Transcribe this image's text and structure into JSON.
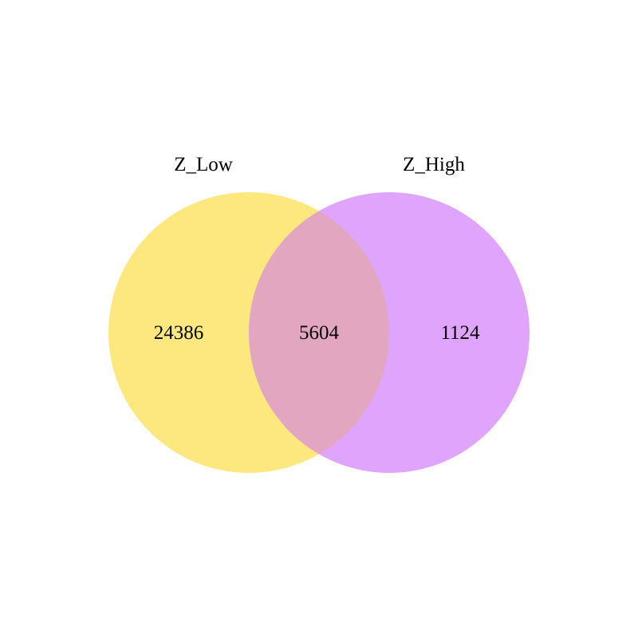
{
  "sets": [
    {
      "name": "Z_Low",
      "color": "#fde87f"
    },
    {
      "name": "Z_High",
      "color": "#dfa4fc"
    }
  ],
  "overlap_color": "#e3a6c1",
  "counts": {
    "only_z_low": "24386",
    "intersection": "5604",
    "only_z_high": "1124"
  }
}
